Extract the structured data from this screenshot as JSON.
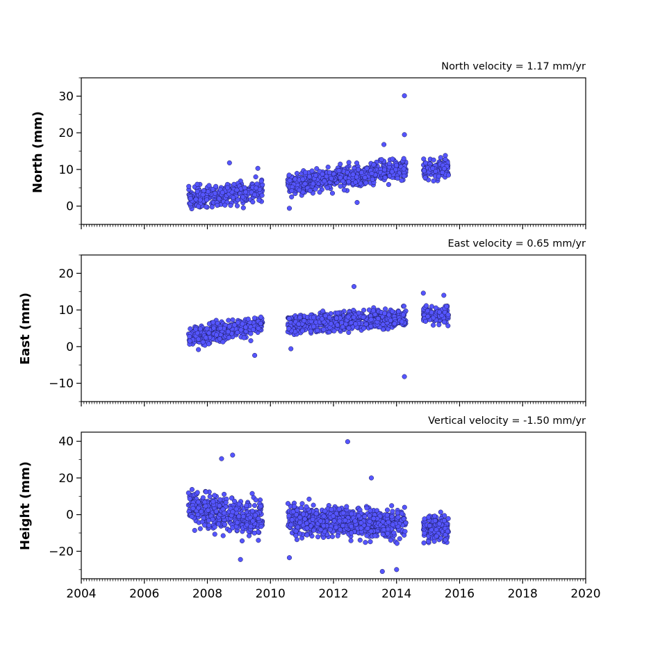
{
  "colors": {
    "marker_fill": "#5555ff",
    "marker_edge": "#1a1a55",
    "axes": "#000000"
  },
  "chart_data": [
    {
      "type": "scatter",
      "title": "North velocity = 1.17 mm/yr",
      "ylabel": "North (mm)",
      "xlabel": "",
      "xlim": [
        2004,
        2020
      ],
      "ylim": [
        -5,
        35
      ],
      "yticks": [
        0,
        10,
        20,
        30
      ],
      "ytick_labels": [
        "0",
        "10",
        "20",
        "30"
      ],
      "grid": false,
      "series": [
        {
          "segments": [
            {
              "start": 2007.4,
              "end": 2009.75,
              "y0": 2.0,
              "slope": 1.0,
              "spread": 2.2,
              "count": 320,
              "seed": 11
            },
            {
              "start": 2010.55,
              "end": 2014.3,
              "y0": 6.0,
              "slope": 1.15,
              "spread": 2.0,
              "count": 650,
              "seed": 12
            },
            {
              "start": 2014.85,
              "end": 2015.65,
              "y0": 10.0,
              "slope": 0.3,
              "spread": 1.8,
              "count": 150,
              "seed": 13
            }
          ]
        }
      ],
      "outliers": [
        [
          2014.25,
          30.1
        ],
        [
          2014.25,
          19.5
        ],
        [
          2008.7,
          11.8
        ],
        [
          2010.6,
          -0.6
        ],
        [
          2012.75,
          1.0
        ],
        [
          2013.6,
          16.8
        ],
        [
          2009.6,
          10.3
        ]
      ]
    },
    {
      "type": "scatter",
      "title": "East velocity = 0.65 mm/yr",
      "ylabel": "East (mm)",
      "xlabel": "",
      "xlim": [
        2004,
        2020
      ],
      "ylim": [
        -15,
        25
      ],
      "yticks": [
        -10,
        0,
        10,
        20
      ],
      "ytick_labels": [
        "−10",
        "0",
        "10",
        "20"
      ],
      "grid": false,
      "series": [
        {
          "segments": [
            {
              "start": 2007.4,
              "end": 2009.75,
              "y0": 2.5,
              "slope": 1.5,
              "spread": 2.0,
              "count": 320,
              "seed": 21
            },
            {
              "start": 2010.55,
              "end": 2014.3,
              "y0": 6.0,
              "slope": 0.5,
              "spread": 1.8,
              "count": 650,
              "seed": 22
            },
            {
              "start": 2014.85,
              "end": 2015.65,
              "y0": 8.5,
              "slope": 0.3,
              "spread": 1.6,
              "count": 150,
              "seed": 23
            }
          ]
        }
      ],
      "outliers": [
        [
          2014.25,
          -8.2
        ],
        [
          2012.65,
          16.4
        ],
        [
          2014.85,
          14.6
        ],
        [
          2015.5,
          14.0
        ],
        [
          2009.5,
          -2.4
        ],
        [
          2010.65,
          -0.6
        ]
      ]
    },
    {
      "type": "scatter",
      "title": "Vertical velocity = -1.50 mm/yr",
      "ylabel": "Height (mm)",
      "xlabel": "",
      "xlim": [
        2004,
        2020
      ],
      "ylim": [
        -35,
        45
      ],
      "yticks": [
        -20,
        0,
        20,
        40
      ],
      "ytick_labels": [
        "−20",
        "0",
        "20",
        "40"
      ],
      "xticks": [
        2004,
        2006,
        2008,
        2010,
        2012,
        2014,
        2016,
        2018,
        2020
      ],
      "xtick_labels": [
        "2004",
        "2006",
        "2008",
        "2010",
        "2012",
        "2014",
        "2016",
        "2018",
        "2020"
      ],
      "grid": false,
      "series": [
        {
          "segments": [
            {
              "start": 2007.4,
              "end": 2009.75,
              "y0": 4.0,
              "slope": -3.0,
              "spread": 7.0,
              "count": 420,
              "seed": 31
            },
            {
              "start": 2010.55,
              "end": 2014.3,
              "y0": -3.0,
              "slope": -0.5,
              "spread": 5.5,
              "count": 750,
              "seed": 32
            },
            {
              "start": 2014.85,
              "end": 2015.65,
              "y0": -8.0,
              "slope": 0.0,
              "spread": 5.0,
              "count": 170,
              "seed": 33
            }
          ]
        }
      ],
      "outliers": [
        [
          2012.45,
          39.8
        ],
        [
          2008.8,
          32.5
        ],
        [
          2008.45,
          30.5
        ],
        [
          2013.55,
          -31.0
        ],
        [
          2014.0,
          -30.0
        ],
        [
          2009.05,
          -24.5
        ],
        [
          2013.2,
          20.0
        ],
        [
          2010.6,
          -23.5
        ]
      ]
    }
  ]
}
